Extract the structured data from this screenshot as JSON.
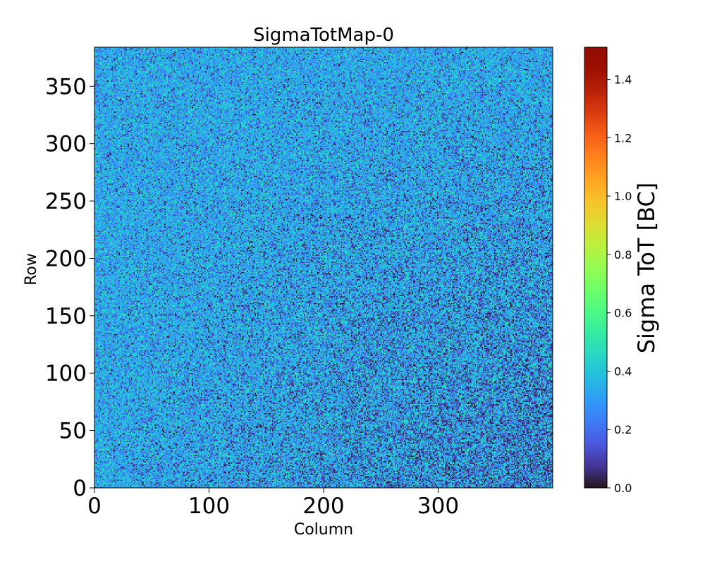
{
  "chart_data": {
    "type": "heatmap",
    "title": "SigmaTotMap-0",
    "xlabel": "Column",
    "ylabel": "Row",
    "colorbar_label": "Sigma ToT [BC]",
    "colormap": "turbo",
    "xlim": [
      0,
      400
    ],
    "ylim": [
      0,
      384
    ],
    "clim": [
      0,
      1.51
    ],
    "x_ticks": [
      0,
      100,
      200,
      300
    ],
    "y_ticks": [
      0,
      50,
      100,
      150,
      200,
      250,
      300,
      350
    ],
    "colorbar_ticks": [
      "0.0",
      "0.2",
      "0.4",
      "0.6",
      "0.8",
      "1.0",
      "1.2",
      "1.4"
    ],
    "colorbar_tick_values": [
      0.0,
      0.2,
      0.4,
      0.6,
      0.8,
      1.0,
      1.2,
      1.4
    ],
    "grid": false,
    "value_distribution": {
      "typical_value": 0.35,
      "min_observed": 0.0,
      "max_observed": 0.5,
      "trend": "lower values (more dark pixels) toward the lower-right region (high column, low row)"
    }
  }
}
